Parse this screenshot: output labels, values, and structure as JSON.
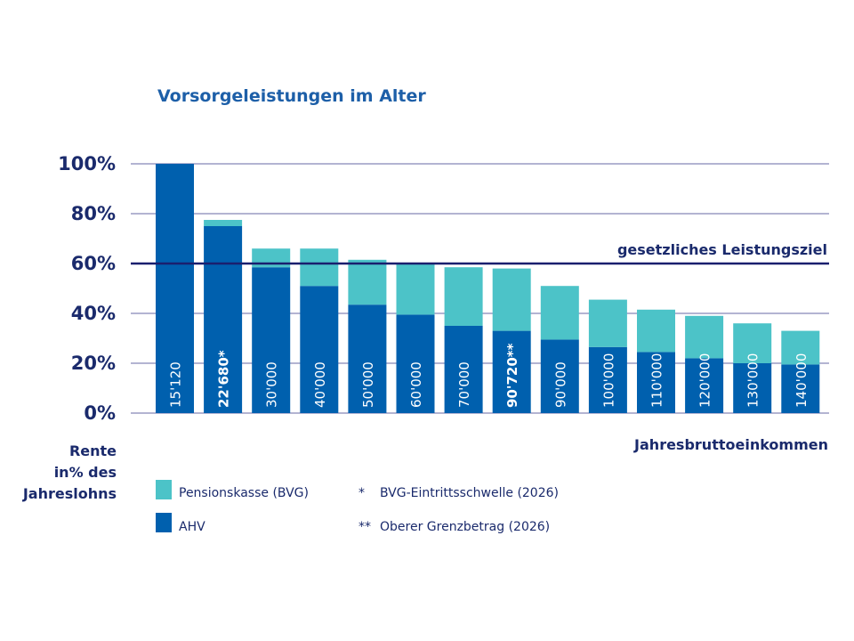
{
  "chart_data": {
    "type": "bar",
    "stacked": true,
    "title": "Vorsorgeleistungen im Alter",
    "xlabel": "Jahresbruttoeinkommen",
    "ylabel": [
      "Rente",
      "in% des",
      "Jahreslohns"
    ],
    "ylim": [
      0,
      100
    ],
    "yticks": [
      0,
      20,
      40,
      60,
      80,
      100
    ],
    "ytick_labels": [
      "0%",
      "20%",
      "40%",
      "60%",
      "80%",
      "100%"
    ],
    "grid": true,
    "categories": [
      "15'120",
      "22'680*",
      "30'000",
      "40'000",
      "50'000",
      "60'000",
      "70'000",
      "90'720**",
      "90'000",
      "100'000",
      "110'000",
      "120'000",
      "130'000",
      "140'000"
    ],
    "highlighted_categories": [
      "22'680*",
      "90'720**"
    ],
    "series": [
      {
        "name": "AHV",
        "color": "#0060ae",
        "values": [
          100,
          75,
          58.5,
          51,
          43.5,
          39.5,
          35,
          33,
          29.5,
          26.5,
          24.5,
          22,
          20,
          19.5
        ]
      },
      {
        "name": "Pensionskasse (BVG)",
        "color": "#4cc3c8",
        "values": [
          0,
          2.5,
          7.5,
          15,
          18,
          20.5,
          23.5,
          25,
          21.5,
          19,
          17,
          17,
          16,
          13.5
        ]
      }
    ],
    "reference_line": {
      "value": 60,
      "label": "gesetzliches Leistungsziel",
      "color": "#1a1f6e"
    },
    "legend": {
      "placement": "bottom-left",
      "entries": [
        {
          "label": "Pensionskasse (BVG)",
          "color": "#4cc3c8"
        },
        {
          "label": "AHV",
          "color": "#0060ae"
        }
      ]
    },
    "footnotes": [
      {
        "marker": "*",
        "text": "BVG-Eintrittsschwelle (2026)"
      },
      {
        "marker": "**",
        "text": "Oberer Grenzbetrag (2026)"
      }
    ]
  }
}
